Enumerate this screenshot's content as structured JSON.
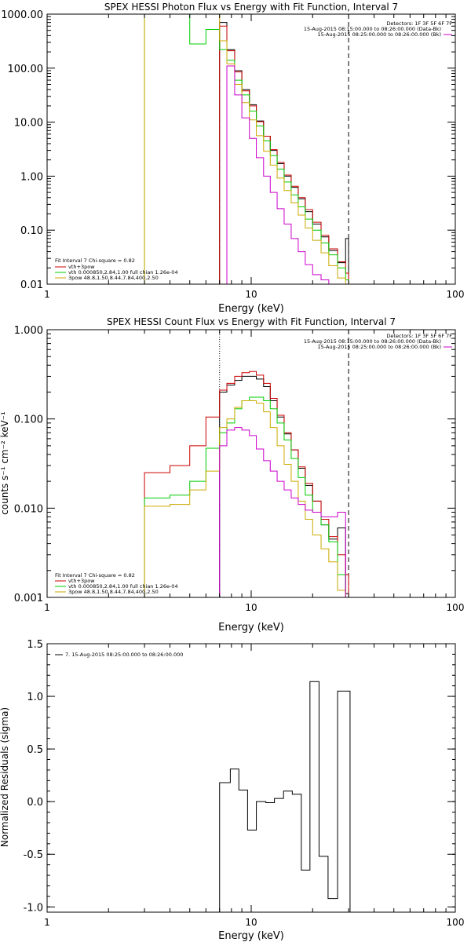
{
  "chart_data": [
    {
      "type": "line",
      "title": "SPEX HESSI Photon Flux vs Energy with Fit Function, Interval 7",
      "xlabel": "Energy (keV)",
      "ylabel": "",
      "xscale": "log",
      "yscale": "log",
      "xlim": [
        1,
        100
      ],
      "ylim": [
        0.01,
        1000
      ],
      "xticks": [
        "1",
        "10",
        "100"
      ],
      "yticks": [
        "0.01",
        "0.10",
        "1.00",
        "10.00",
        "100.00",
        "1000.00"
      ],
      "vlines": [
        {
          "x": 7.0,
          "style": "dotted",
          "color": "#cc00cc"
        },
        {
          "x": 30.0,
          "style": "dashed",
          "color": "#000000"
        }
      ],
      "header_lines": [
        "Detectors: 1F 3F 5F 6F 7F",
        "15-Aug-2015 08:15:00.000 to 08:26:00.000 (Data-Bk)",
        "15-Aug-2015 08:25:00.000 to 08:26:00.000 (Bk)"
      ],
      "legend_title": "Fit Interval 7   Chi-square = 0.82",
      "legend": [
        {
          "label": "vth+3pow",
          "color": "#cc0000"
        },
        {
          "label": "vth 0.000850,2.84,1.00  full chian 1.26e-04",
          "color": "#00cc00"
        },
        {
          "label": "3pow 48.8,1.50,8.44,7.84,400,2.50",
          "color": "#ccaa00"
        }
      ],
      "edges": [
        3,
        4,
        5,
        6,
        7,
        7.6,
        8.3,
        9,
        9.8,
        10.6,
        11.5,
        12.4,
        13.4,
        14.5,
        15.7,
        17,
        18.4,
        20,
        22,
        24,
        26.5,
        29,
        30
      ],
      "series": [
        {
          "name": "data",
          "color": "#000000",
          "start": 4,
          "values": [
            700,
            220,
            90,
            40,
            21,
            10.5,
            5.5,
            3,
            1.7,
            1,
            0.62,
            0.38,
            0.22,
            0.13,
            0.075,
            0.042,
            0.025,
            0.07
          ]
        },
        {
          "name": "vth+3pow",
          "color": "#cc0000",
          "start": 4,
          "values": [
            600,
            210,
            85,
            38,
            20,
            10.2,
            5.5,
            3.1,
            1.8,
            1.05,
            0.65,
            0.4,
            0.24,
            0.14,
            0.08,
            0.045,
            0.026,
            0.016
          ]
        },
        {
          "name": "vth",
          "color": "#00cc00",
          "start": 0,
          "values": [
            1000,
            1000,
            280,
            520,
            220,
            140,
            60,
            32,
            16,
            8.5,
            4.5,
            2.4,
            1.35,
            0.78,
            0.45,
            0.27,
            0.16,
            0.1,
            0.058,
            0.035,
            0.02,
            0.012
          ]
        },
        {
          "name": "3pow",
          "color": "#ccaa00",
          "start": 0,
          "values": [
            1000,
            1000,
            1000,
            1000,
            320,
            120,
            50,
            23,
            11,
            5.6,
            2.9,
            1.6,
            0.92,
            0.54,
            0.32,
            0.19,
            0.11,
            0.065,
            0.038,
            0.022,
            0.013,
            0.008
          ]
        },
        {
          "name": "Bk",
          "color": "#cc00cc",
          "start": 5,
          "values": [
            110,
            32,
            12,
            5,
            2.2,
            1,
            0.5,
            0.25,
            0.13,
            0.07,
            0.04,
            0.023,
            0.015,
            0.012,
            0.009,
            0.008,
            0.01
          ]
        }
      ]
    },
    {
      "type": "line",
      "title": "SPEX HESSI Count Flux vs Energy with Fit Function, Interval 7",
      "xlabel": "Energy (keV)",
      "ylabel": "counts s⁻¹ cm⁻² keV⁻¹",
      "xscale": "log",
      "yscale": "log",
      "xlim": [
        1,
        100
      ],
      "ylim": [
        0.001,
        1
      ],
      "xticks": [
        "1",
        "10",
        "100"
      ],
      "yticks": [
        "0.001",
        "0.010",
        "0.100",
        "1.000"
      ],
      "vlines": [
        {
          "x": 7.0,
          "style": "dotted",
          "color": "#000000"
        },
        {
          "x": 30.0,
          "style": "dashed",
          "color": "#000000"
        }
      ],
      "header_lines": [
        "Detectors: 1F 3F 5F 6F 7F",
        "15-Aug-2015 08:15:00.000 to 08:26:00.000 (Data-Bk)",
        "15-Aug-2015 08:25:00.000 to 08:26:00.000 (Bk)"
      ],
      "legend_title": "Fit Interval 7   Chi-square = 0.82",
      "legend": [
        {
          "label": "vth+3pow",
          "color": "#cc0000"
        },
        {
          "label": "vth 0.000850,2.84,1.00  full chian 1.26e-04",
          "color": "#00cc00"
        },
        {
          "label": "3pow 48.8,1.50,8.44,7.84,400,2.50",
          "color": "#ccaa00"
        }
      ],
      "edges": [
        3,
        4,
        5,
        6,
        7,
        7.6,
        8.3,
        9,
        9.8,
        10.6,
        11.5,
        12.4,
        13.4,
        14.5,
        15.7,
        17,
        18.4,
        20,
        22,
        24,
        26.5,
        29,
        30
      ],
      "series": [
        {
          "name": "data",
          "color": "#000000",
          "start": 4,
          "values": [
            0.2,
            0.24,
            0.27,
            0.3,
            0.3,
            0.28,
            0.23,
            0.16,
            0.105,
            0.068,
            0.045,
            0.028,
            0.018,
            0.012,
            0.0065,
            0.0045,
            0.006,
            0.0011
          ]
        },
        {
          "name": "vth+3pow",
          "color": "#cc0000",
          "start": 0,
          "values": [
            0.025,
            0.03,
            0.05,
            0.105,
            0.21,
            0.25,
            0.3,
            0.33,
            0.34,
            0.31,
            0.25,
            0.17,
            0.11,
            0.07,
            0.045,
            0.029,
            0.019,
            0.012,
            0.0075,
            0.0048,
            0.003,
            0.0018
          ]
        },
        {
          "name": "vth",
          "color": "#00cc00",
          "start": 0,
          "values": [
            0.013,
            0.014,
            0.02,
            0.047,
            0.07,
            0.09,
            0.13,
            0.16,
            0.175,
            0.175,
            0.16,
            0.13,
            0.09,
            0.058,
            0.036,
            0.022,
            0.014,
            0.009,
            0.0065,
            0.0042,
            0.0018,
            0.001
          ]
        },
        {
          "name": "3pow",
          "color": "#ccaa00",
          "start": 0,
          "values": [
            0.0105,
            0.011,
            0.016,
            0.026,
            0.08,
            0.1,
            0.135,
            0.16,
            0.16,
            0.15,
            0.12,
            0.08,
            0.05,
            0.031,
            0.02,
            0.012,
            0.0075,
            0.005,
            0.0035,
            0.0025,
            0.0012,
            0.001
          ]
        },
        {
          "name": "Bk",
          "color": "#cc00cc",
          "start": 4,
          "values": [
            0.05,
            0.075,
            0.08,
            0.075,
            0.065,
            0.046,
            0.034,
            0.026,
            0.02,
            0.016,
            0.013,
            0.011,
            0.0095,
            0.009,
            0.008,
            0.008,
            0.009,
            0.001
          ]
        }
      ]
    },
    {
      "type": "line",
      "title": "",
      "xlabel": "Energy (keV)",
      "ylabel": "Normalized Residuals (sigma)",
      "xscale": "log",
      "yscale": "linear",
      "xlim": [
        1,
        100
      ],
      "ylim": [
        -1.05,
        1.5
      ],
      "xticks": [
        "1",
        "10",
        "100"
      ],
      "yticks": [
        "-1.0",
        "-0.5",
        "0.0",
        "0.5",
        "1.0",
        "1.5"
      ],
      "legend": [
        {
          "label": "7. 15-Aug-2015 08:25:00.000 to 08:26:00.000",
          "color": "#000000"
        }
      ],
      "edges": [
        7,
        7.9,
        8.7,
        9.6,
        10.6,
        11.8,
        13,
        14.4,
        15.9,
        17.6,
        19.4,
        21.5,
        23.8,
        26.5,
        29.5,
        30.5
      ],
      "series": [
        {
          "name": "residuals",
          "color": "#000000",
          "start": 0,
          "values": [
            0.18,
            0.31,
            0.11,
            -0.27,
            0.0,
            -0.01,
            0.03,
            0.1,
            0.07,
            -0.65,
            1.14,
            -0.52,
            -0.92,
            1.05,
            1.05
          ]
        }
      ]
    }
  ]
}
